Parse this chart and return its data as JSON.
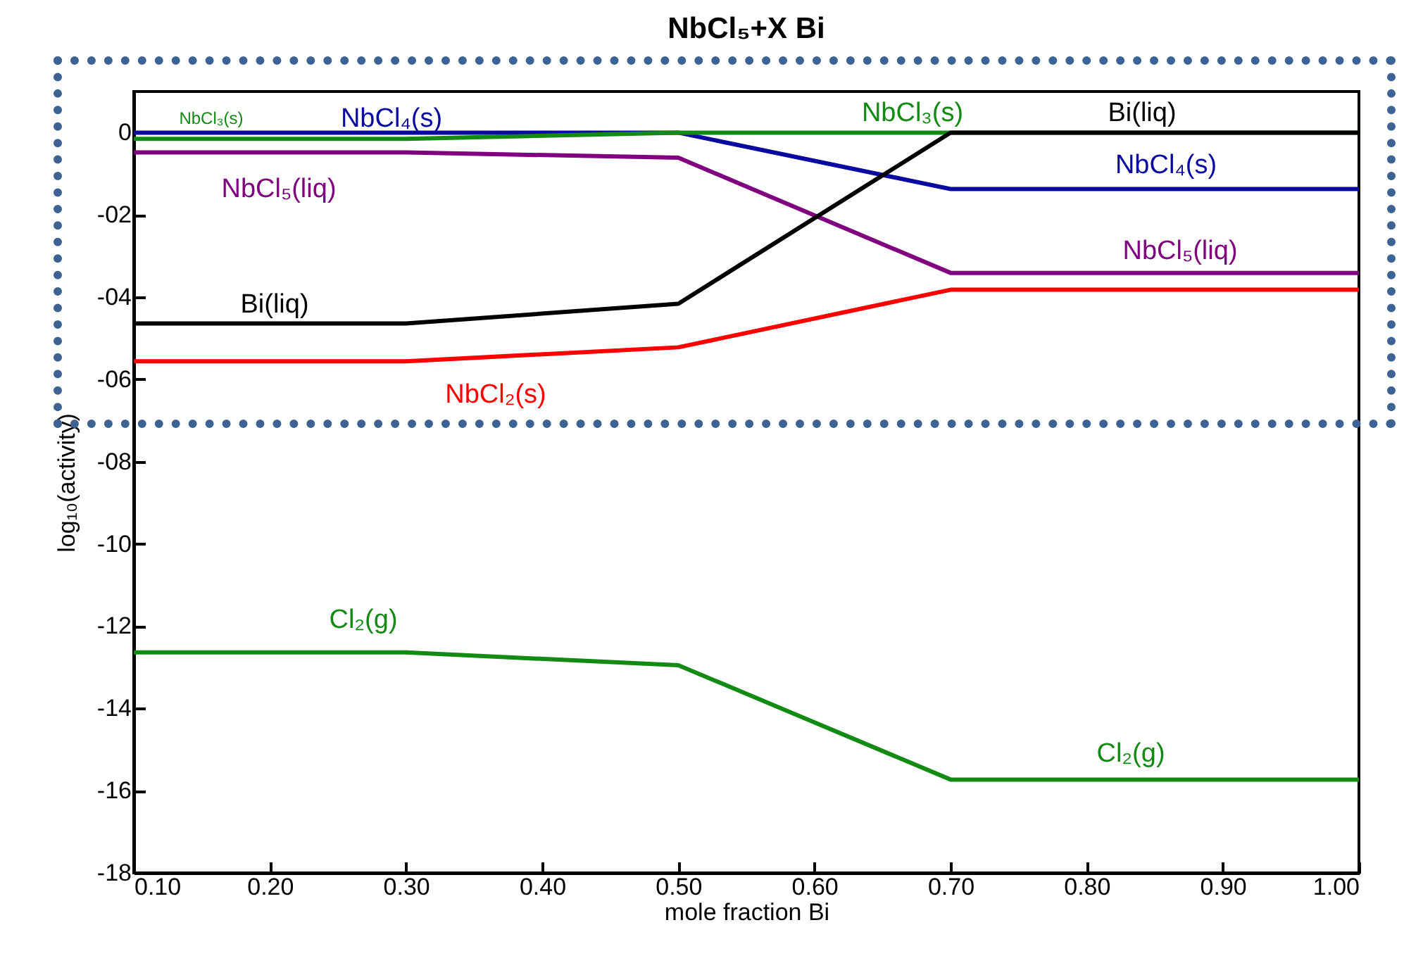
{
  "chart_data": {
    "type": "line",
    "title": "NbCl₅+X Bi",
    "xlabel": "mole fraction Bi",
    "ylabel": "log₁₀(activity)",
    "x": [
      0.1,
      0.3,
      0.5,
      0.7,
      1.0
    ],
    "series": [
      {
        "name": "NbCl₄(s)",
        "color": "#0a0aa0",
        "values": [
          0,
          0,
          0,
          -1.37,
          -1.37
        ]
      },
      {
        "name": "NbCl₃(s)",
        "color": "#138a13",
        "values": [
          -0.15,
          -0.15,
          0,
          0,
          0
        ]
      },
      {
        "name": "NbCl₅(liq)",
        "color": "#800080",
        "values": [
          -0.48,
          -0.48,
          -0.61,
          -3.41,
          -3.41
        ]
      },
      {
        "name": "Bi(liq)",
        "color": "#000000",
        "values": [
          -4.64,
          -4.64,
          -4.16,
          0,
          0
        ]
      },
      {
        "name": "NbCl₂(s)",
        "color": "#ff0000",
        "values": [
          -5.56,
          -5.56,
          -5.22,
          -3.82,
          -3.82
        ]
      },
      {
        "name": "Cl₂(g)",
        "color": "#138a13",
        "values": [
          -12.64,
          -12.64,
          -12.95,
          -15.73,
          -15.73
        ]
      }
    ],
    "annotations": [
      "NbCl₃(s)",
      "NbCl₄(s)",
      "NbCl₅(liq)",
      "Bi(liq)",
      "Cl₂(g)"
    ],
    "xlim": [
      0.1,
      1.0
    ],
    "xticks": [
      {
        "value": 0.1,
        "label": "0.10"
      },
      {
        "value": 0.2,
        "label": "0.20"
      },
      {
        "value": 0.3,
        "label": "0.30"
      },
      {
        "value": 0.4,
        "label": "0.40"
      },
      {
        "value": 0.5,
        "label": "0.50"
      },
      {
        "value": 0.6,
        "label": "0.60"
      },
      {
        "value": 0.7,
        "label": "0.70"
      },
      {
        "value": 0.8,
        "label": "0.80"
      },
      {
        "value": 0.9,
        "label": "0.90"
      },
      {
        "value": 1.0,
        "label": "1.00"
      }
    ],
    "ylim": [
      -18,
      1
    ],
    "yticks": [
      0,
      {
        "value": -2,
        "label": "-02"
      },
      {
        "value": -4,
        "label": "-04"
      },
      {
        "value": -6,
        "label": "-06"
      },
      {
        "value": -8,
        "label": "-08"
      },
      -10,
      -12,
      -14,
      -16,
      -18
    ],
    "grid": false,
    "legend": false,
    "marker": "none",
    "line_style": "solid"
  }
}
